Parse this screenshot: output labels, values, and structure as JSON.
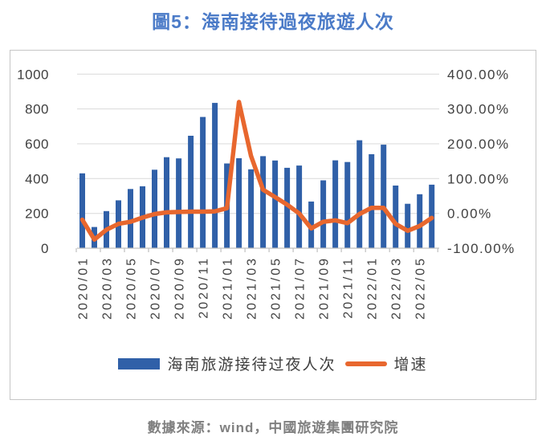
{
  "title": "圖5：海南接待過夜旅遊人次",
  "source_note": "數據來源：wind，中國旅遊集團研究院",
  "legend": {
    "bar_label": "海南旅游接待过夜人次",
    "line_label": "增速"
  },
  "colors": {
    "title_text": "#4B7BC8",
    "bar": "#3060A8",
    "line": "#E8672E",
    "axis_text": "#404040",
    "gridline": "#D9D9D9",
    "axis_line": "#BFBFBF",
    "box_border": "#C6C6C6",
    "source_text": "#808080",
    "legend_text": "#404040"
  },
  "chart_data": {
    "type": "combo: bar (left axis) + line (right axis)",
    "title": "圖5：海南接待過夜旅遊人次",
    "x": [
      "2020/01",
      "2020/02",
      "2020/03",
      "2020/04",
      "2020/05",
      "2020/06",
      "2020/07",
      "2020/08",
      "2020/09",
      "2020/10",
      "2020/11",
      "2020/12",
      "2021/01",
      "2021/02",
      "2021/03",
      "2021/04",
      "2021/05",
      "2021/06",
      "2021/07",
      "2021/08",
      "2021/09",
      "2021/10",
      "2021/11",
      "2021/12",
      "2022/01",
      "2022/02",
      "2022/03",
      "2022/04",
      "2022/05",
      "2022/06"
    ],
    "x_label_every": 2,
    "visible_x_labels": [
      "2020/01",
      "2020/03",
      "2020/05",
      "2020/07",
      "2020/09",
      "2020/11",
      "2021/01",
      "2021/03",
      "2021/05",
      "2021/07",
      "2021/09",
      "2021/11",
      "2022/01",
      "2022/03",
      "2022/05"
    ],
    "series": [
      {
        "name": "海南旅游接待过夜人次",
        "type": "bar",
        "axis": "left",
        "color": "#3060A8",
        "values": [
          430,
          122,
          213,
          275,
          340,
          356,
          451,
          523,
          516,
          646,
          754,
          835,
          487,
          517,
          453,
          529,
          504,
          462,
          475,
          268,
          390,
          505,
          495,
          620,
          540,
          595,
          360,
          255,
          310,
          365
        ]
      },
      {
        "name": "增速",
        "type": "line",
        "axis": "right",
        "color": "#E8672E",
        "values_pct": [
          -18,
          -75,
          -47,
          -30,
          -24,
          -12,
          -2,
          3,
          4,
          5,
          5,
          6,
          15,
          320,
          165,
          68,
          47,
          25,
          0,
          -43,
          -24,
          -20,
          -28,
          -2,
          16,
          16,
          -30,
          -50,
          -36,
          -13
        ]
      }
    ],
    "left_axis": {
      "min": 0,
      "max": 1000,
      "ticks": [
        0,
        200,
        400,
        600,
        800,
        1000
      ]
    },
    "right_axis": {
      "min": -100,
      "max": 400,
      "ticks": [
        {
          "value": -100,
          "label": "-100.00%"
        },
        {
          "value": 0,
          "label": "0.00%"
        },
        {
          "value": 100,
          "label": "100.00%"
        },
        {
          "value": 200,
          "label": "200.00%"
        },
        {
          "value": 300,
          "label": "300.00%"
        },
        {
          "value": 400,
          "label": "400.00%"
        }
      ]
    },
    "grid": true,
    "legend_position": "bottom"
  }
}
